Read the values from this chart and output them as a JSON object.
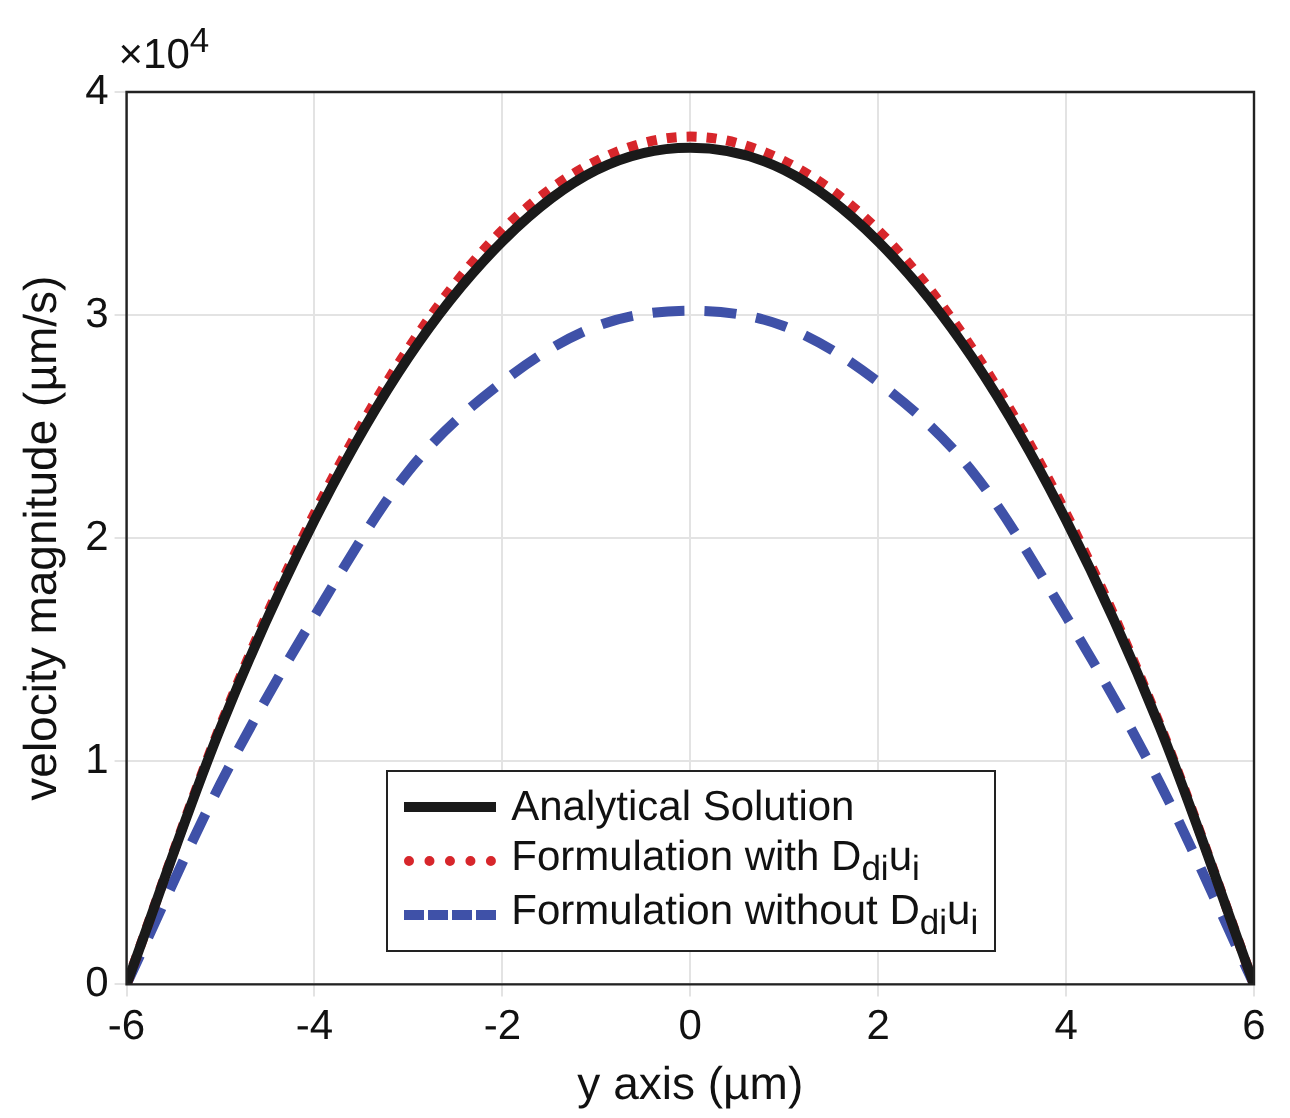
{
  "chart_data": {
    "type": "line",
    "xlabel": "y axis (µm)",
    "ylabel": "velocity magnitude (µm/s)",
    "x": [
      -6,
      -5,
      -4,
      -3,
      -2,
      -1,
      0,
      1,
      2,
      3,
      4,
      5,
      6
    ],
    "series": [
      {
        "name": "Analytical Solution",
        "color": "#1a1a1a",
        "line_style": "solid",
        "values": [
          0,
          1.15,
          2.08,
          2.81,
          3.33,
          3.65,
          3.75,
          3.65,
          3.33,
          2.81,
          2.08,
          1.15,
          0
        ]
      },
      {
        "name": "Formulation with D$_{di}$u$_{i}$",
        "color": "#d7262b",
        "line_style": "dotted",
        "values": [
          0,
          1.16,
          2.11,
          2.85,
          3.38,
          3.69,
          3.8,
          3.69,
          3.38,
          2.85,
          2.11,
          1.16,
          0
        ]
      },
      {
        "name": "Formulation without D$_{di}$u$_{i}$",
        "color": "#3f51a8",
        "line_style": "dashed",
        "values": [
          0,
          0.9,
          1.65,
          2.3,
          2.7,
          2.95,
          3.02,
          2.95,
          2.7,
          2.3,
          1.65,
          0.9,
          0
        ]
      }
    ],
    "xlim": [
      -6,
      6
    ],
    "xticks": [
      -6,
      -4,
      -2,
      0,
      2,
      4,
      6
    ],
    "ylim": [
      0,
      4
    ],
    "yticks": [
      0,
      1,
      2,
      3,
      4
    ],
    "annotations": [
      "×10$^{4}$"
    ],
    "grid": true,
    "legend": "bottom",
    "marker": "none"
  }
}
